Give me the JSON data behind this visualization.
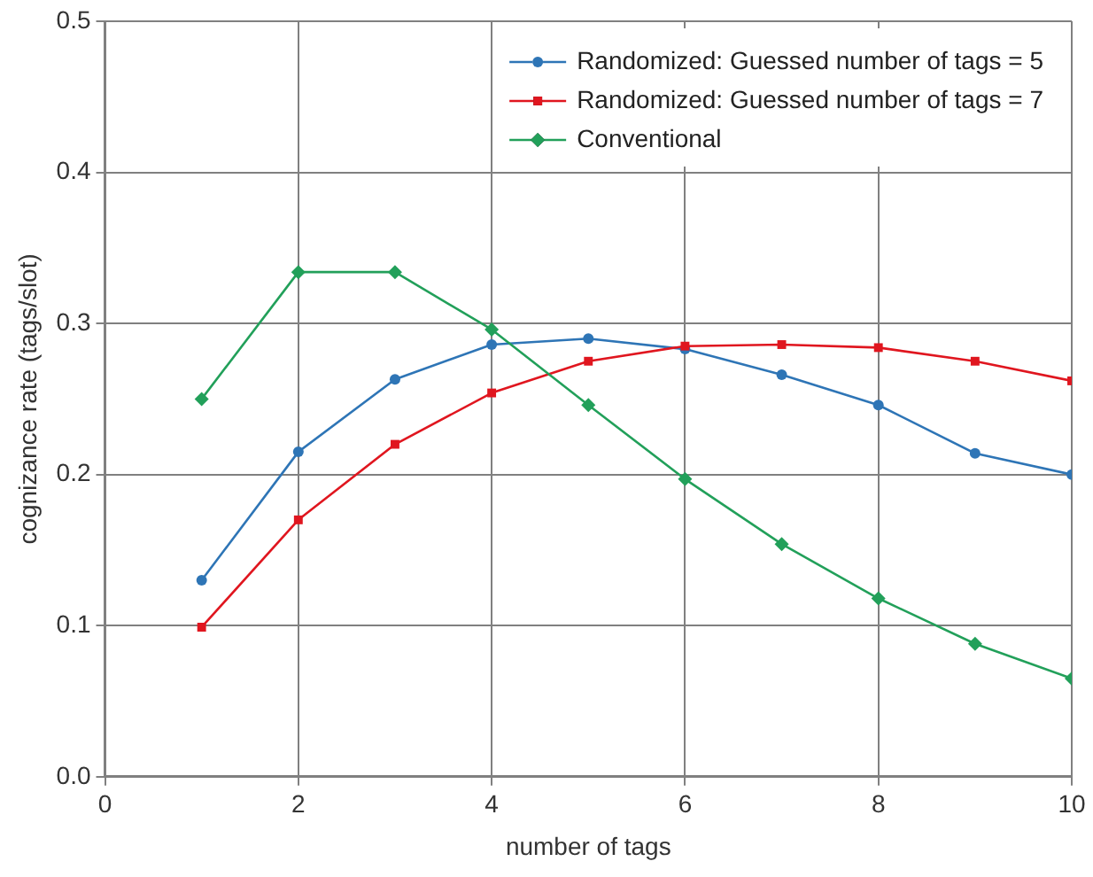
{
  "chart_data": {
    "type": "line",
    "xlabel": "number of tags",
    "ylabel": "cognizance rate (tags/slot)",
    "x": [
      1,
      2,
      3,
      4,
      5,
      6,
      7,
      8,
      9,
      10
    ],
    "series": [
      {
        "name": "Randomized: Guessed number of tags = 5",
        "color": "#2e75b6",
        "marker": "circle",
        "values": [
          0.13,
          0.215,
          0.263,
          0.286,
          0.29,
          0.283,
          0.266,
          0.246,
          0.214,
          0.2
        ]
      },
      {
        "name": "Randomized: Guessed number of tags = 7",
        "color": "#e0161f",
        "marker": "square",
        "values": [
          0.099,
          0.17,
          0.22,
          0.254,
          0.275,
          0.285,
          0.286,
          0.284,
          0.275,
          0.262
        ]
      },
      {
        "name": "Conventional",
        "color": "#22a05a",
        "marker": "diamond",
        "values": [
          0.25,
          0.334,
          0.334,
          0.296,
          0.246,
          0.197,
          0.154,
          0.118,
          0.088,
          0.065
        ]
      }
    ],
    "xlim": [
      0,
      10
    ],
    "xticks": [
      0,
      2,
      4,
      6,
      8,
      10
    ],
    "ylim": [
      0,
      0.5
    ],
    "yticks": [
      {
        "value": 0,
        "label": "0.0"
      },
      {
        "value": 0.1,
        "label": "0.1"
      },
      {
        "value": 0.2,
        "label": "0.2"
      },
      {
        "value": 0.3,
        "label": "0.3"
      },
      {
        "value": 0.4,
        "label": "0.4"
      },
      {
        "value": 0.5,
        "label": "0.5"
      }
    ],
    "grid": true,
    "legend": "top right",
    "line_style": "solid"
  }
}
